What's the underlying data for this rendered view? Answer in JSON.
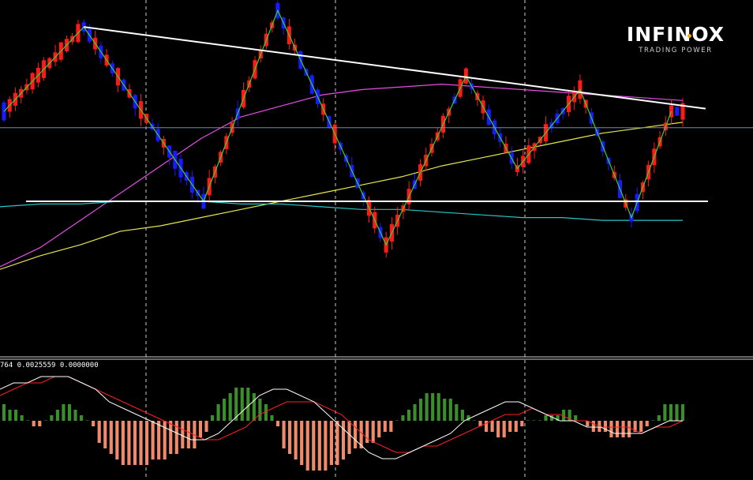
{
  "brand": {
    "name": "INFINOX",
    "tagline": "TRADING POWER",
    "accent_color": "#f2a900"
  },
  "indicator": {
    "label": "764 0.0025559 0.0000000"
  },
  "colors": {
    "background": "#000000",
    "bull_candle": "#ff1a1a",
    "bear_candle": "#1a1aff",
    "zigzag": "#3cd12e",
    "ma_fast": "#e64de6",
    "ma_mid": "#e6e64d",
    "ma_slow": "#26c7c7",
    "trendline": "#ffffff",
    "hist_up": "#3a8f2a",
    "hist_down": "#f08a6a",
    "macd_line": "#ffffff",
    "signal_line": "#ff2020",
    "grid": "#ffffff"
  },
  "chart_data": [
    {
      "type": "candlestick",
      "title": "",
      "candle_count": 120,
      "overlays": [
        "zigzag",
        "moving_average_fast",
        "moving_average_mid",
        "moving_average_slow",
        "descending_trendline",
        "horizontal_support",
        "horizontal_level"
      ],
      "zigzag_pivots_by_candle": [
        {
          "candle": 0,
          "value": 0.62
        },
        {
          "candle": 14,
          "value": 0.93
        },
        {
          "candle": 35,
          "value": 0.29
        },
        {
          "candle": 48,
          "value": 0.99
        },
        {
          "candle": 67,
          "value": 0.13
        },
        {
          "candle": 81,
          "value": 0.75
        },
        {
          "candle": 90,
          "value": 0.41
        },
        {
          "candle": 101,
          "value": 0.7
        },
        {
          "candle": 110,
          "value": 0.23
        },
        {
          "candle": 117,
          "value": 0.62
        }
      ],
      "trendline_points": [
        {
          "candle": 14,
          "value": 0.93
        },
        {
          "candle": 123,
          "value": 0.63
        }
      ],
      "support_level": 0.29,
      "current_level": 0.56,
      "ma_fast_values": [
        0.05,
        0.12,
        0.22,
        0.32,
        0.42,
        0.52,
        0.6,
        0.64,
        0.68,
        0.7,
        0.71,
        0.72,
        0.71,
        0.7,
        0.69,
        0.68,
        0.67,
        0.66
      ],
      "ma_mid_values": [
        0.04,
        0.09,
        0.13,
        0.18,
        0.2,
        0.23,
        0.26,
        0.29,
        0.32,
        0.35,
        0.38,
        0.42,
        0.45,
        0.48,
        0.51,
        0.54,
        0.56,
        0.58
      ],
      "ma_slow_values": [
        0.27,
        0.28,
        0.28,
        0.29,
        0.29,
        0.29,
        0.28,
        0.28,
        0.27,
        0.26,
        0.26,
        0.25,
        0.24,
        0.23,
        0.23,
        0.22,
        0.22,
        0.22
      ],
      "grid": true
    },
    {
      "type": "bar",
      "title": "",
      "indicator_type": "macd_histogram_with_lines",
      "histogram_values": [
        3,
        2,
        2,
        1,
        0,
        -1,
        -1,
        0,
        1,
        2,
        3,
        3,
        2,
        1,
        0,
        -1,
        -4,
        -5,
        -6,
        -7,
        -8,
        -8,
        -8,
        -8,
        -8,
        -7,
        -7,
        -7,
        -6,
        -6,
        -5,
        -5,
        -5,
        -3,
        -2,
        1,
        3,
        4,
        5,
        6,
        6,
        6,
        5,
        4,
        3,
        1,
        -1,
        -5,
        -6,
        -7,
        -8,
        -9,
        -9,
        -9,
        -9,
        -8,
        -8,
        -7,
        -6,
        -5,
        -5,
        -4,
        -4,
        -3,
        -2,
        -2,
        0,
        1,
        2,
        3,
        4,
        5,
        5,
        5,
        4,
        4,
        3,
        2,
        1,
        0,
        -1,
        -2,
        -2,
        -3,
        -3,
        -2,
        -2,
        -1,
        0,
        0,
        0,
        1,
        1,
        1,
        2,
        2,
        1,
        0,
        -1,
        -2,
        -2,
        -2,
        -3,
        -3,
        -3,
        -3,
        -2,
        -2,
        -1,
        0,
        1,
        3,
        3,
        3,
        3
      ],
      "macd_line": [
        5,
        6,
        6,
        7,
        7,
        7,
        6,
        5,
        3,
        2,
        1,
        0,
        -1,
        -2,
        -3,
        -3,
        -2,
        0,
        2,
        4,
        5,
        5,
        4,
        3,
        1,
        -1,
        -3,
        -5,
        -6,
        -6,
        -5,
        -4,
        -3,
        -2,
        0,
        1,
        2,
        3,
        3,
        2,
        1,
        0,
        0,
        -1,
        -1,
        -2,
        -2,
        -2,
        -1,
        0,
        0
      ],
      "signal_line": [
        4,
        5,
        6,
        6,
        7,
        7,
        6,
        5,
        4,
        3,
        2,
        1,
        0,
        -1,
        -2,
        -3,
        -3,
        -2,
        -1,
        1,
        2,
        3,
        3,
        3,
        2,
        1,
        -1,
        -3,
        -4,
        -5,
        -5,
        -4,
        -4,
        -3,
        -2,
        -1,
        0,
        1,
        1,
        2,
        1,
        1,
        0,
        0,
        -1,
        -1,
        -1,
        -2,
        -1,
        -1,
        0
      ]
    }
  ]
}
